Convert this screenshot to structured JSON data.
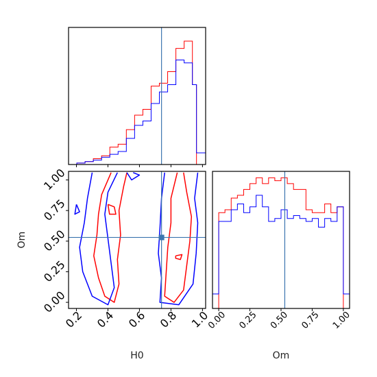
{
  "chart_data": [
    {
      "type": "histogram",
      "panel": "H0 marginal",
      "xlim": [
        0.15,
        1.02
      ],
      "xticks": [
        "0.2",
        "0.4",
        "0.6",
        "0.8",
        "1.0"
      ],
      "truth": 0.74,
      "bin_edges": [
        0.15,
        0.1762,
        0.2024,
        0.2286,
        0.2548,
        0.281,
        0.3072,
        0.3334,
        0.3596,
        0.3858,
        0.412,
        0.4382,
        0.4644,
        0.4906,
        0.5168,
        0.543,
        0.5692,
        0.5954,
        0.6216,
        0.6478,
        0.674,
        0.7002,
        0.7264,
        0.7526,
        0.7788,
        0.805,
        0.8312,
        0.8574,
        0.8836,
        0.9098,
        0.936,
        0.962,
        0.985,
        1.02
      ],
      "series": [
        {
          "color": "#ff0000",
          "values": [
            0,
            0,
            0.01,
            0.01,
            0.02,
            0.02,
            0.04,
            0.04,
            0.06,
            0.06,
            0.12,
            0.12,
            0.14,
            0.14,
            0.24,
            0.24,
            0.34,
            0.34,
            0.38,
            0.38,
            0.54,
            0.54,
            0.56,
            0.56,
            0.64,
            0.64,
            0.8,
            0.8,
            0.85,
            0.85,
            0.55,
            0,
            0
          ]
        },
        {
          "color": "#0000ff",
          "values": [
            0,
            0,
            0.01,
            0.01,
            0.02,
            0.02,
            0.03,
            0.03,
            0.05,
            0.05,
            0.07,
            0.07,
            0.09,
            0.09,
            0.18,
            0.18,
            0.27,
            0.27,
            0.3,
            0.3,
            0.42,
            0.42,
            0.5,
            0.5,
            0.55,
            0.55,
            0.72,
            0.72,
            0.7,
            0.7,
            0.55,
            0.08,
            0.08
          ]
        }
      ]
    },
    {
      "type": "contour",
      "panel": "H0 vs Om joint",
      "xlabel": "H0",
      "ylabel": "Om",
      "xlim": [
        0.15,
        1.02
      ],
      "ylim": [
        -0.05,
        1.07
      ],
      "xticks": [
        "0.2",
        "0.4",
        "0.6",
        "0.8",
        "1.0"
      ],
      "yticks": [
        "0.00",
        "0.25",
        "0.50",
        "0.75",
        "1.00"
      ],
      "truth": [
        0.74,
        0.53
      ],
      "series": [
        {
          "color": "#ff0000",
          "contours": [
            [
              [
                0.42,
                1.06
              ],
              [
                0.36,
                0.88
              ],
              [
                0.34,
                0.72
              ],
              [
                0.33,
                0.55
              ],
              [
                0.31,
                0.38
              ],
              [
                0.34,
                0.2
              ],
              [
                0.38,
                0.05
              ],
              [
                0.44,
                0.0
              ],
              [
                0.47,
                0.15
              ],
              [
                0.46,
                0.35
              ],
              [
                0.48,
                0.55
              ],
              [
                0.47,
                0.75
              ],
              [
                0.5,
                0.95
              ],
              [
                0.52,
                1.06
              ]
            ],
            [
              [
                0.84,
                1.06
              ],
              [
                0.8,
                0.85
              ],
              [
                0.8,
                0.65
              ],
              [
                0.78,
                0.45
              ],
              [
                0.77,
                0.25
              ],
              [
                0.76,
                0.05
              ],
              [
                0.82,
                0.0
              ],
              [
                0.88,
                0.1
              ],
              [
                0.9,
                0.3
              ],
              [
                0.92,
                0.5
              ],
              [
                0.93,
                0.7
              ],
              [
                0.9,
                0.9
              ],
              [
                0.88,
                1.06
              ]
            ],
            [
              [
                0.4,
                0.8
              ],
              [
                0.44,
                0.78
              ],
              [
                0.45,
                0.72
              ],
              [
                0.41,
                0.72
              ],
              [
                0.4,
                0.8
              ]
            ],
            [
              [
                0.83,
                0.38
              ],
              [
                0.87,
                0.39
              ],
              [
                0.86,
                0.35
              ],
              [
                0.83,
                0.36
              ],
              [
                0.83,
                0.38
              ]
            ]
          ]
        },
        {
          "color": "#0000ff",
          "contours": [
            [
              [
                0.3,
                1.06
              ],
              [
                0.27,
                0.85
              ],
              [
                0.25,
                0.65
              ],
              [
                0.22,
                0.45
              ],
              [
                0.24,
                0.25
              ],
              [
                0.3,
                0.05
              ],
              [
                0.4,
                -0.02
              ],
              [
                0.44,
                0.12
              ],
              [
                0.42,
                0.32
              ],
              [
                0.4,
                0.52
              ],
              [
                0.38,
                0.72
              ],
              [
                0.4,
                0.9
              ],
              [
                0.46,
                1.06
              ]
            ],
            [
              [
                0.76,
                1.06
              ],
              [
                0.74,
                0.85
              ],
              [
                0.73,
                0.6
              ],
              [
                0.72,
                0.4
              ],
              [
                0.74,
                0.2
              ],
              [
                0.73,
                0.0
              ],
              [
                0.85,
                -0.02
              ],
              [
                0.94,
                0.15
              ],
              [
                0.96,
                0.4
              ],
              [
                0.97,
                0.65
              ],
              [
                0.95,
                0.85
              ],
              [
                0.97,
                1.06
              ]
            ],
            [
              [
                0.2,
                0.8
              ],
              [
                0.22,
                0.74
              ],
              [
                0.19,
                0.72
              ],
              [
                0.2,
                0.8
              ]
            ],
            [
              [
                0.52,
                1.06
              ],
              [
                0.55,
                1.0
              ],
              [
                0.6,
                1.04
              ],
              [
                0.56,
                1.06
              ]
            ]
          ]
        }
      ]
    },
    {
      "type": "histogram",
      "panel": "Om marginal",
      "xlabel": "Om",
      "xlim": [
        -0.05,
        1.05
      ],
      "xticks": [
        "0.00",
        "0.25",
        "0.50",
        "0.75",
        "1.00"
      ],
      "truth": 0.53,
      "bin_edges": [
        -0.05,
        0.0,
        0.05,
        0.1,
        0.15,
        0.2,
        0.25,
        0.3,
        0.35,
        0.4,
        0.45,
        0.5,
        0.55,
        0.6,
        0.65,
        0.7,
        0.75,
        0.8,
        0.85,
        0.9,
        0.95,
        1.0,
        1.05
      ],
      "series": [
        {
          "color": "#ff0000",
          "values": [
            0,
            0.66,
            0.68,
            0.76,
            0.78,
            0.82,
            0.86,
            0.9,
            0.86,
            0.9,
            0.88,
            0.9,
            0.86,
            0.82,
            0.82,
            0.68,
            0.66,
            0.66,
            0.72,
            0.66,
            0.7,
            0
          ]
        },
        {
          "color": "#0000ff",
          "values": [
            0.1,
            0.6,
            0.6,
            0.68,
            0.72,
            0.66,
            0.7,
            0.78,
            0.7,
            0.6,
            0.62,
            0.68,
            0.62,
            0.64,
            0.62,
            0.6,
            0.62,
            0.56,
            0.62,
            0.6,
            0.7,
            0.1
          ]
        }
      ]
    }
  ]
}
